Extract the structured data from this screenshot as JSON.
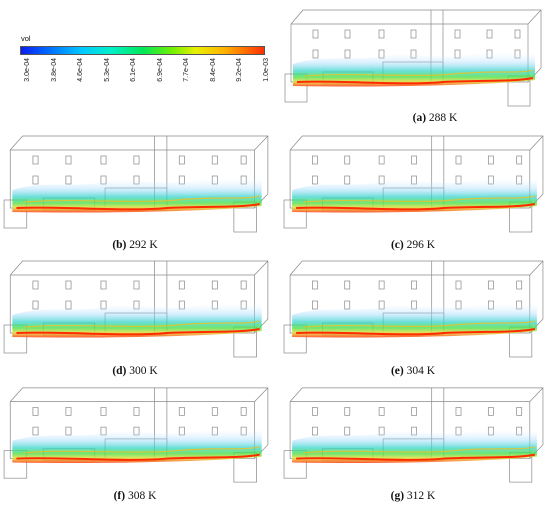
{
  "legend": {
    "variable": "vol",
    "ticks": [
      "3.0e-04",
      "3.8e-04",
      "4.6e-04",
      "5.3e-04",
      "6.1e-04",
      "6.9e-04",
      "7.7e-04",
      "8.4e-04",
      "9.2e-04",
      "1.0e-03"
    ]
  },
  "panels": [
    {
      "letter": "(a)",
      "label": "288 K"
    },
    {
      "letter": "(b)",
      "label": "292 K"
    },
    {
      "letter": "(c)",
      "label": "296 K"
    },
    {
      "letter": "(d)",
      "label": "300 K"
    },
    {
      "letter": "(e)",
      "label": "304 K"
    },
    {
      "letter": "(f)",
      "label": "308 K"
    },
    {
      "letter": "(g)",
      "label": "312 K"
    }
  ]
}
